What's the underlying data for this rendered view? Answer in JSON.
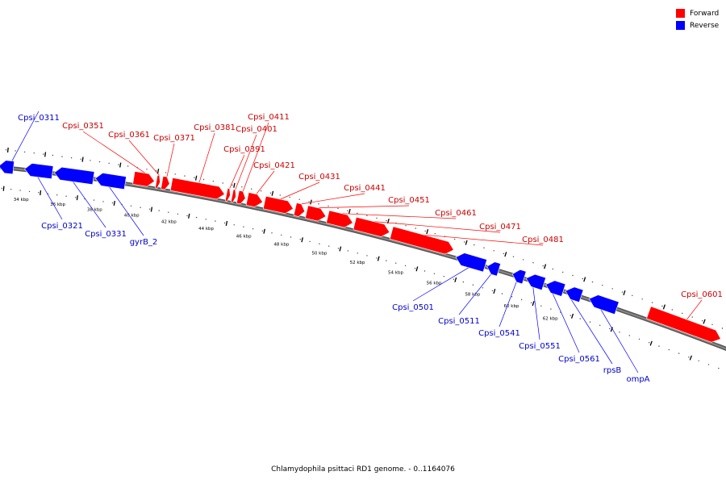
{
  "caption": "Chlamydophila psittaci RD1 genome. - 0..1164076",
  "legend": {
    "forward_label": "Forward",
    "reverse_label": "Reverse",
    "forward_color": "#ff0000",
    "reverse_color": "#0000ff"
  },
  "colors": {
    "forward_label": "#cc0000",
    "reverse_label": "#0000cc",
    "backbone": "#888888"
  },
  "scale_labels": [
    {
      "text": "34 kbp",
      "kbp": 34
    },
    {
      "text": "36 kbp",
      "kbp": 36
    },
    {
      "text": "38 kbp",
      "kbp": 38
    },
    {
      "text": "40 kbp",
      "kbp": 40
    },
    {
      "text": "42 kbp",
      "kbp": 42
    },
    {
      "text": "44 kbp",
      "kbp": 44
    },
    {
      "text": "46 kbp",
      "kbp": 46
    },
    {
      "text": "48 kbp",
      "kbp": 48
    },
    {
      "text": "50 kbp",
      "kbp": 50
    },
    {
      "text": "52 kbp",
      "kbp": 52
    },
    {
      "text": "54 kbp",
      "kbp": 54
    },
    {
      "text": "56 kbp",
      "kbp": 56
    },
    {
      "text": "58 kbp",
      "kbp": 58
    },
    {
      "text": "60 kbp",
      "kbp": 60
    },
    {
      "text": "62 kbp",
      "kbp": 62
    }
  ],
  "genes": [
    {
      "name": "Cpsi_0311",
      "strand": "reverse",
      "start_kbp": 32.6,
      "end_kbp": 33.4
    },
    {
      "name": "Cpsi_0321",
      "strand": "reverse",
      "start_kbp": 34.0,
      "end_kbp": 35.5
    },
    {
      "name": "Cpsi_0331",
      "strand": "reverse",
      "start_kbp": 35.6,
      "end_kbp": 37.7
    },
    {
      "name": "gyrB_2",
      "strand": "reverse",
      "start_kbp": 37.8,
      "end_kbp": 39.4
    },
    {
      "name": "Cpsi_0351",
      "strand": "forward",
      "start_kbp": 39.8,
      "end_kbp": 40.9
    },
    {
      "name": "Cpsi_0361",
      "strand": "forward",
      "start_kbp": 41.0,
      "end_kbp": 41.2
    },
    {
      "name": "Cpsi_0371",
      "strand": "forward",
      "start_kbp": 41.3,
      "end_kbp": 41.7
    },
    {
      "name": "Cpsi_0381",
      "strand": "forward",
      "start_kbp": 41.8,
      "end_kbp": 44.6
    },
    {
      "name": "Cpsi_0391",
      "strand": "forward",
      "start_kbp": 44.7,
      "end_kbp": 44.9
    },
    {
      "name": "Cpsi_0401",
      "strand": "forward",
      "start_kbp": 45.0,
      "end_kbp": 45.2
    },
    {
      "name": "Cpsi_0411",
      "strand": "forward",
      "start_kbp": 45.3,
      "end_kbp": 45.7
    },
    {
      "name": "Cpsi_0421",
      "strand": "forward",
      "start_kbp": 45.8,
      "end_kbp": 46.6
    },
    {
      "name": "Cpsi_0431",
      "strand": "forward",
      "start_kbp": 46.7,
      "end_kbp": 48.2
    },
    {
      "name": "Cpsi_0441",
      "strand": "forward",
      "start_kbp": 48.3,
      "end_kbp": 48.8
    },
    {
      "name": "Cpsi_0451",
      "strand": "forward",
      "start_kbp": 48.9,
      "end_kbp": 49.9
    },
    {
      "name": "Cpsi_0461",
      "strand": "forward",
      "start_kbp": 50.0,
      "end_kbp": 51.3
    },
    {
      "name": "Cpsi_0471",
      "strand": "forward",
      "start_kbp": 51.4,
      "end_kbp": 53.2
    },
    {
      "name": "Cpsi_0481",
      "strand": "forward",
      "start_kbp": 53.3,
      "end_kbp": 56.5
    },
    {
      "name": "Cpsi_0501",
      "strand": "reverse",
      "start_kbp": 56.7,
      "end_kbp": 58.2
    },
    {
      "name": "Cpsi_0511",
      "strand": "reverse",
      "start_kbp": 58.3,
      "end_kbp": 58.9
    },
    {
      "name": "Cpsi_0541",
      "strand": "reverse",
      "start_kbp": 59.6,
      "end_kbp": 60.2
    },
    {
      "name": "Cpsi_0551",
      "strand": "reverse",
      "start_kbp": 60.3,
      "end_kbp": 61.2
    },
    {
      "name": "Cpsi_0561",
      "strand": "reverse",
      "start_kbp": 61.3,
      "end_kbp": 62.2
    },
    {
      "name": "rpsB",
      "strand": "reverse",
      "start_kbp": 62.3,
      "end_kbp": 63.1
    },
    {
      "name": "ompA",
      "strand": "reverse",
      "start_kbp": 63.5,
      "end_kbp": 64.9
    },
    {
      "name": "Cpsi_0601",
      "strand": "forward",
      "start_kbp": 66.4,
      "end_kbp": 70.0
    }
  ]
}
